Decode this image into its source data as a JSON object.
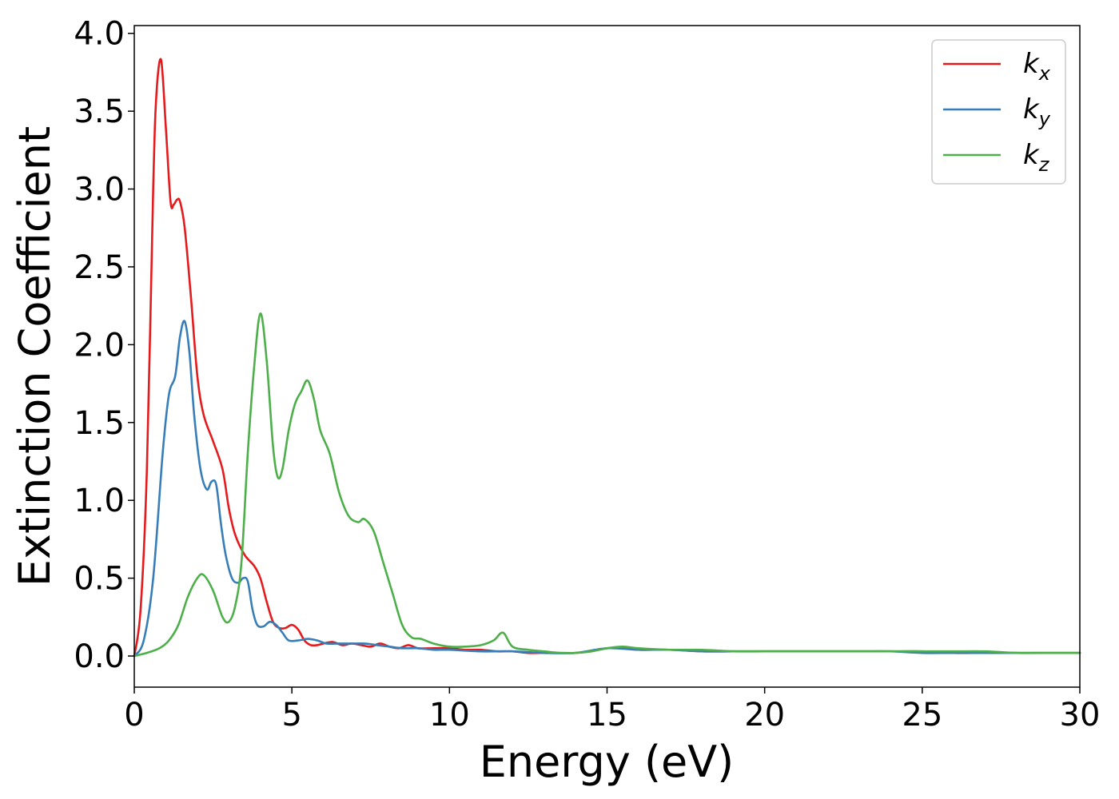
{
  "chart_data": {
    "type": "line",
    "xlabel": "Energy (eV)",
    "ylabel": "Extinction Coefficient",
    "xlim": [
      0,
      30
    ],
    "ylim": [
      -0.2,
      4.05
    ],
    "xticks": [
      "0",
      "5",
      "10",
      "15",
      "20",
      "25",
      "30"
    ],
    "yticks": [
      "0.0",
      "0.5",
      "1.0",
      "1.5",
      "2.0",
      "2.5",
      "3.0",
      "3.5",
      "4.0"
    ],
    "grid": false,
    "legend_position": "top-right",
    "series": [
      {
        "name": "k",
        "subscript": "x",
        "color": "#e41a1c",
        "x": [
          0,
          0.2,
          0.4,
          0.6,
          0.7,
          0.85,
          1.0,
          1.15,
          1.25,
          1.35,
          1.45,
          1.6,
          1.8,
          2.0,
          2.2,
          2.5,
          2.8,
          3.0,
          3.2,
          3.5,
          3.8,
          4.0,
          4.2,
          4.4,
          4.6,
          4.8,
          5.0,
          5.2,
          5.4,
          5.6,
          5.8,
          6.0,
          6.3,
          6.6,
          6.9,
          7.2,
          7.5,
          7.8,
          8.1,
          8.4,
          8.7,
          9.0,
          9.5,
          10,
          10.5,
          11,
          11.5,
          12,
          12.5,
          13,
          13.5,
          14,
          14.5,
          15,
          15.5,
          16,
          17,
          18,
          19,
          20,
          21,
          22,
          23,
          24,
          25,
          26,
          27,
          28,
          29,
          30
        ],
        "y": [
          0.0,
          0.3,
          1.2,
          3.0,
          3.6,
          3.83,
          3.4,
          2.92,
          2.9,
          2.93,
          2.92,
          2.75,
          2.3,
          1.8,
          1.55,
          1.38,
          1.2,
          0.95,
          0.78,
          0.65,
          0.58,
          0.5,
          0.35,
          0.22,
          0.18,
          0.18,
          0.2,
          0.17,
          0.1,
          0.07,
          0.07,
          0.08,
          0.09,
          0.07,
          0.08,
          0.07,
          0.06,
          0.08,
          0.06,
          0.05,
          0.07,
          0.05,
          0.05,
          0.05,
          0.04,
          0.04,
          0.03,
          0.03,
          0.02,
          0.02,
          0.02,
          0.02,
          0.03,
          0.05,
          0.05,
          0.04,
          0.04,
          0.03,
          0.03,
          0.03,
          0.03,
          0.03,
          0.03,
          0.03,
          0.03,
          0.02,
          0.02,
          0.02,
          0.02,
          0.02
        ]
      },
      {
        "name": "k",
        "subscript": "y",
        "color": "#377eb8",
        "x": [
          0,
          0.3,
          0.6,
          0.9,
          1.1,
          1.3,
          1.45,
          1.6,
          1.75,
          1.9,
          2.1,
          2.3,
          2.45,
          2.6,
          2.75,
          2.9,
          3.1,
          3.3,
          3.45,
          3.6,
          3.75,
          3.9,
          4.1,
          4.3,
          4.5,
          4.7,
          4.9,
          5.2,
          5.5,
          5.8,
          6.1,
          6.5,
          6.9,
          7.3,
          7.7,
          8.1,
          8.5,
          9,
          9.5,
          10,
          11,
          12,
          13,
          14,
          15,
          16,
          17,
          18,
          19,
          20,
          21,
          22,
          23,
          24,
          25,
          26,
          27,
          28,
          29,
          30
        ],
        "y": [
          0.0,
          0.1,
          0.5,
          1.3,
          1.68,
          1.8,
          2.05,
          2.15,
          1.95,
          1.55,
          1.2,
          1.07,
          1.12,
          1.1,
          0.85,
          0.65,
          0.5,
          0.47,
          0.5,
          0.48,
          0.3,
          0.2,
          0.19,
          0.22,
          0.2,
          0.15,
          0.1,
          0.1,
          0.11,
          0.1,
          0.08,
          0.08,
          0.08,
          0.08,
          0.07,
          0.06,
          0.05,
          0.05,
          0.04,
          0.04,
          0.03,
          0.03,
          0.02,
          0.02,
          0.05,
          0.04,
          0.04,
          0.03,
          0.03,
          0.03,
          0.03,
          0.03,
          0.03,
          0.03,
          0.02,
          0.02,
          0.02,
          0.02,
          0.02,
          0.02
        ]
      },
      {
        "name": "k",
        "subscript": "z",
        "color": "#4daf4a",
        "x": [
          0,
          0.4,
          0.8,
          1.1,
          1.4,
          1.7,
          2.0,
          2.2,
          2.5,
          2.8,
          3.0,
          3.2,
          3.4,
          3.6,
          3.8,
          4.0,
          4.2,
          4.4,
          4.55,
          4.7,
          4.9,
          5.1,
          5.3,
          5.5,
          5.7,
          5.9,
          6.2,
          6.5,
          6.8,
          7.1,
          7.3,
          7.6,
          7.9,
          8.2,
          8.5,
          8.8,
          9.1,
          9.5,
          10,
          10.5,
          11,
          11.4,
          11.7,
          12,
          12.5,
          13,
          13.5,
          14,
          14.5,
          15,
          15.5,
          16,
          17,
          18,
          19,
          20,
          21,
          22,
          23,
          24,
          25,
          26,
          27,
          28,
          29,
          30
        ],
        "y": [
          0.0,
          0.02,
          0.05,
          0.1,
          0.2,
          0.38,
          0.5,
          0.52,
          0.42,
          0.25,
          0.22,
          0.32,
          0.6,
          1.3,
          1.85,
          2.2,
          1.9,
          1.35,
          1.15,
          1.2,
          1.45,
          1.62,
          1.7,
          1.77,
          1.65,
          1.45,
          1.3,
          1.05,
          0.9,
          0.86,
          0.88,
          0.8,
          0.6,
          0.4,
          0.2,
          0.12,
          0.11,
          0.08,
          0.06,
          0.06,
          0.07,
          0.1,
          0.15,
          0.06,
          0.04,
          0.03,
          0.02,
          0.02,
          0.03,
          0.05,
          0.06,
          0.05,
          0.04,
          0.04,
          0.03,
          0.03,
          0.03,
          0.03,
          0.03,
          0.03,
          0.03,
          0.03,
          0.03,
          0.02,
          0.02,
          0.02
        ]
      }
    ]
  }
}
